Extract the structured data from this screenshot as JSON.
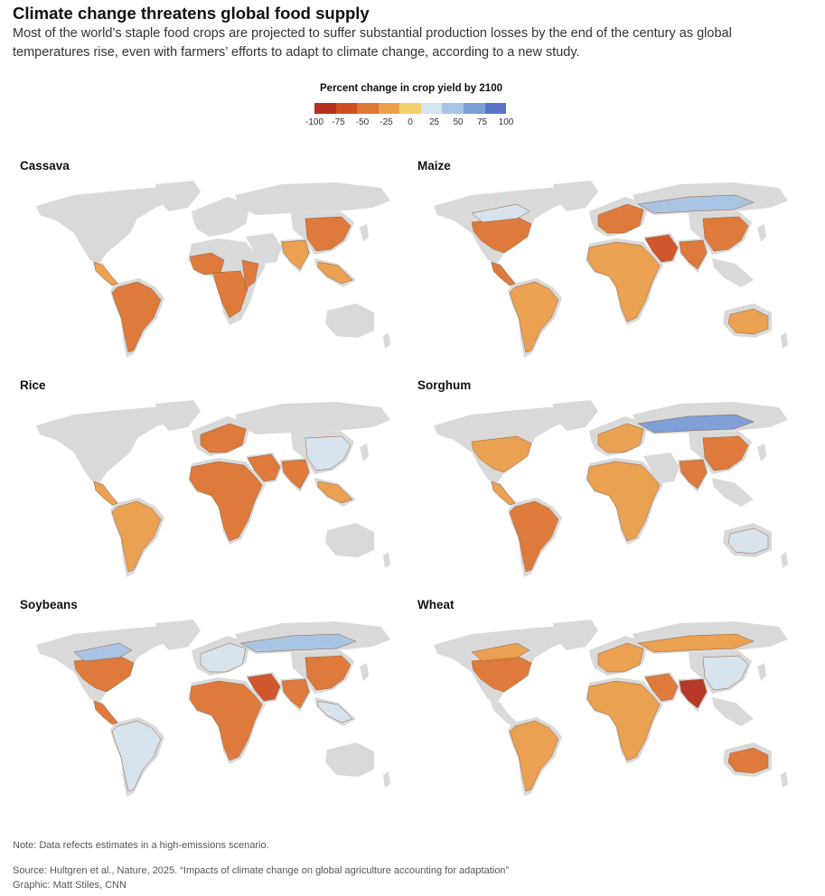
{
  "header": {
    "title": "Climate change threatens global food supply",
    "subtitle": "Most of the world’s staple food crops are projected to suffer substantial production losses by the end of the century as global temperatures rise, even with farmers’ efforts to adapt to climate change, according to a new study."
  },
  "legend": {
    "title": "Percent change in crop yield by 2100",
    "ticks": [
      "-100",
      "-75",
      "-50",
      "-25",
      "0",
      "25",
      "50",
      "75",
      "100"
    ],
    "colors": [
      "#b5301e",
      "#cf4f24",
      "#df7634",
      "#eb9f4a",
      "#f4cf6d",
      "#d6e4ef",
      "#a8c4e4",
      "#7c9ed7",
      "#5774c6"
    ]
  },
  "land_color": "#d9d9d9",
  "panels": [
    {
      "label": "Cassava",
      "regions": [
        {
          "region": "south_america",
          "value": -40
        },
        {
          "region": "central_america",
          "value": -35
        },
        {
          "region": "west_africa",
          "value": -60
        },
        {
          "region": "central_africa",
          "value": -45
        },
        {
          "region": "east_africa",
          "value": -40
        },
        {
          "region": "south_asia",
          "value": -30
        },
        {
          "region": "east_asia",
          "value": -45
        },
        {
          "region": "southeast_asia",
          "value": -25
        }
      ]
    },
    {
      "label": "Maize",
      "regions": [
        {
          "region": "north_america",
          "value": -45
        },
        {
          "region": "canada",
          "value": 35
        },
        {
          "region": "central_america",
          "value": -40
        },
        {
          "region": "south_america",
          "value": -25
        },
        {
          "region": "africa",
          "value": -35
        },
        {
          "region": "europe",
          "value": -40
        },
        {
          "region": "russia",
          "value": 40
        },
        {
          "region": "middle_east",
          "value": -70
        },
        {
          "region": "south_asia",
          "value": -40
        },
        {
          "region": "east_asia",
          "value": -45
        },
        {
          "region": "australia",
          "value": -20
        }
      ]
    },
    {
      "label": "Rice",
      "regions": [
        {
          "region": "central_america",
          "value": -35
        },
        {
          "region": "south_america",
          "value": -30
        },
        {
          "region": "africa",
          "value": -55
        },
        {
          "region": "europe",
          "value": -40
        },
        {
          "region": "middle_east",
          "value": -50
        },
        {
          "region": "south_asia",
          "value": -45
        },
        {
          "region": "east_asia",
          "value": 20
        },
        {
          "region": "southeast_asia",
          "value": -25
        }
      ]
    },
    {
      "label": "Sorghum",
      "regions": [
        {
          "region": "north_america",
          "value": -35
        },
        {
          "region": "central_america",
          "value": -30
        },
        {
          "region": "south_america",
          "value": -40
        },
        {
          "region": "africa",
          "value": -35
        },
        {
          "region": "europe",
          "value": -20
        },
        {
          "region": "russia",
          "value": 70
        },
        {
          "region": "south_asia",
          "value": -40
        },
        {
          "region": "east_asia",
          "value": -45
        },
        {
          "region": "australia",
          "value": 20
        }
      ]
    },
    {
      "label": "Soybeans",
      "regions": [
        {
          "region": "north_america",
          "value": -45
        },
        {
          "region": "canada",
          "value": 45
        },
        {
          "region": "central_america",
          "value": -40
        },
        {
          "region": "south_america",
          "value": 30
        },
        {
          "region": "africa",
          "value": -40
        },
        {
          "region": "europe",
          "value": 30
        },
        {
          "region": "russia",
          "value": 45
        },
        {
          "region": "middle_east",
          "value": -85
        },
        {
          "region": "south_asia",
          "value": -50
        },
        {
          "region": "east_asia",
          "value": -55
        },
        {
          "region": "southeast_asia",
          "value": 15
        }
      ]
    },
    {
      "label": "Wheat",
      "regions": [
        {
          "region": "north_america",
          "value": -40
        },
        {
          "region": "canada",
          "value": -30
        },
        {
          "region": "south_america",
          "value": -35
        },
        {
          "region": "africa",
          "value": -35
        },
        {
          "region": "europe",
          "value": -30
        },
        {
          "region": "russia",
          "value": -35
        },
        {
          "region": "middle_east",
          "value": -40
        },
        {
          "region": "south_asia",
          "value": -90
        },
        {
          "region": "east_asia",
          "value": 35
        },
        {
          "region": "australia",
          "value": -40
        }
      ]
    }
  ],
  "footer": {
    "note": "Note: Data refects estimates in a high-emissions scenario.",
    "source": "Source: Hultgren et al., Nature, 2025. “Impacts of climate change on global agriculture accounting for adaptation”",
    "credit": "Graphic: Matt Stiles, CNN"
  }
}
